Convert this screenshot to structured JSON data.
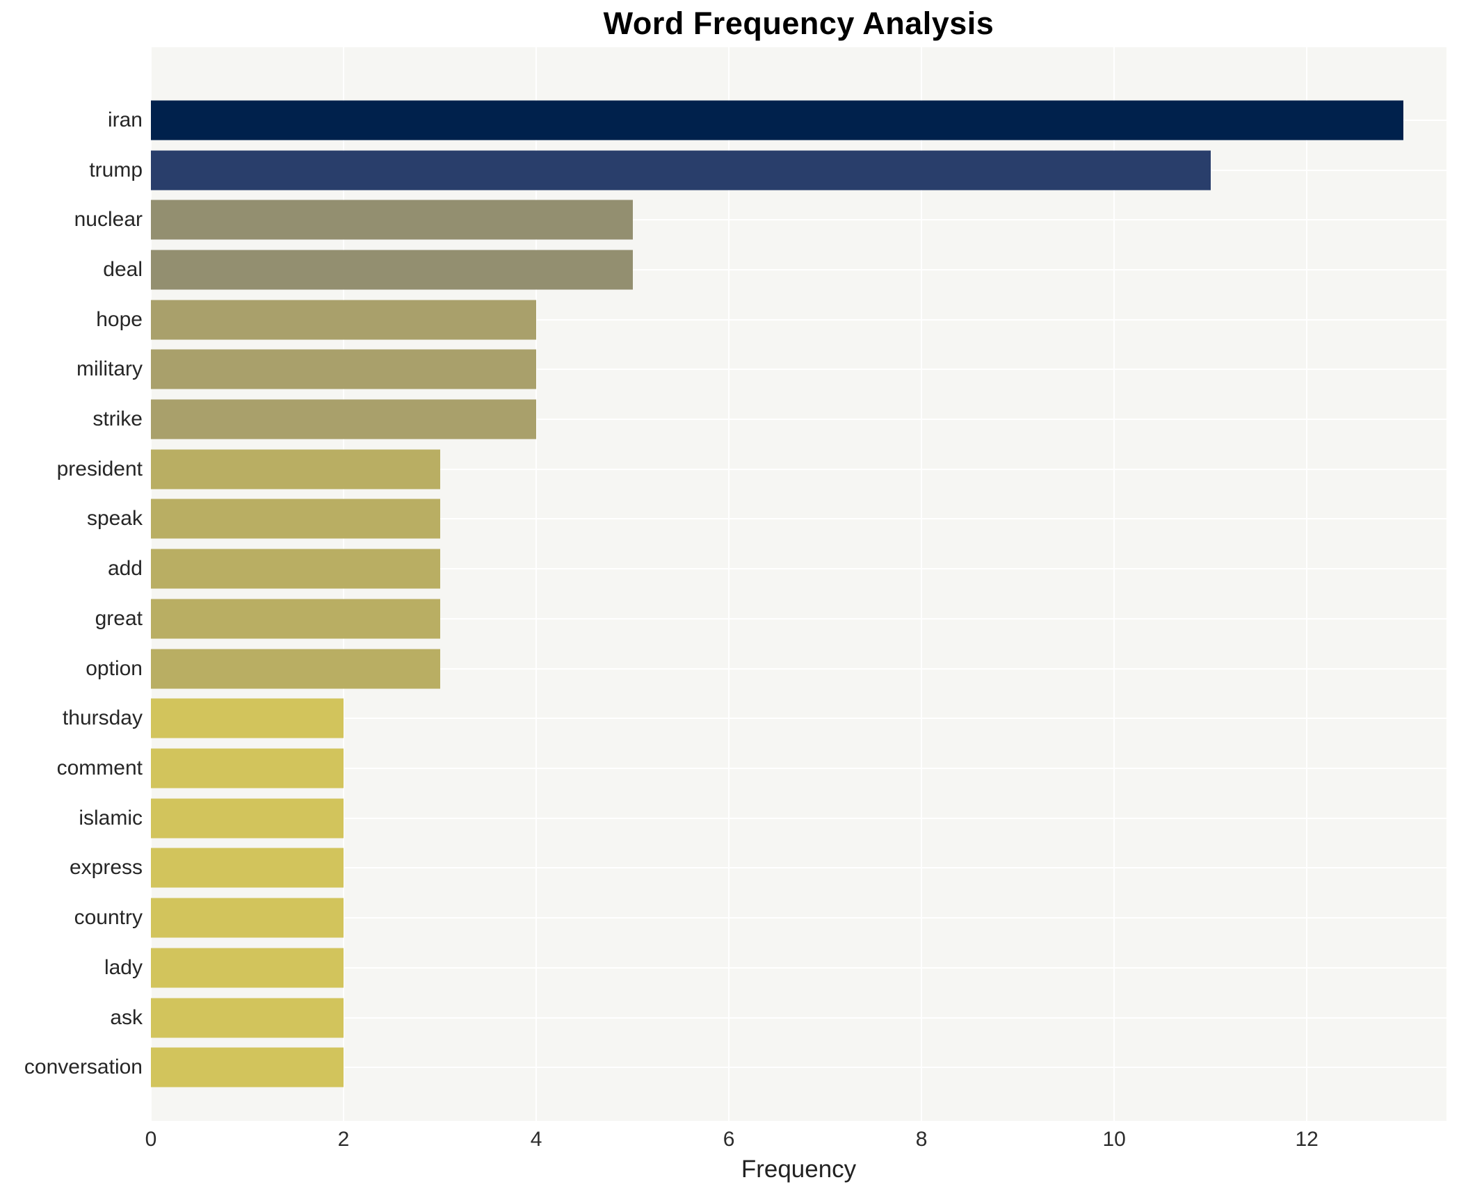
{
  "title": "Word Frequency Analysis",
  "chart_data": {
    "type": "bar",
    "orientation": "horizontal",
    "title": "Word Frequency Analysis",
    "xlabel": "Frequency",
    "ylabel": "",
    "xlim": [
      0,
      13.45
    ],
    "xticks": [
      0,
      2,
      4,
      6,
      8,
      10,
      12
    ],
    "grid": true,
    "legend": false,
    "plot_bg_color": "#f6f6f3",
    "grid_color": "#ffffff",
    "categories": [
      "iran",
      "trump",
      "nuclear",
      "deal",
      "hope",
      "military",
      "strike",
      "president",
      "speak",
      "add",
      "great",
      "option",
      "thursday",
      "comment",
      "islamic",
      "express",
      "country",
      "lady",
      "ask",
      "conversation"
    ],
    "values": [
      13,
      11,
      5,
      5,
      4,
      4,
      4,
      3,
      3,
      3,
      3,
      3,
      2,
      2,
      2,
      2,
      2,
      2,
      2,
      2
    ],
    "bar_colors": [
      "#00214c",
      "#293e6b",
      "#938f70",
      "#938f70",
      "#a9a06b",
      "#a9a06b",
      "#a9a06b",
      "#b9ae63",
      "#b9ae63",
      "#b9ae63",
      "#b9ae63",
      "#b9ae63",
      "#d2c45c",
      "#d2c45c",
      "#d2c45c",
      "#d2c45c",
      "#d2c45c",
      "#d2c45c",
      "#d2c45c",
      "#d2c45c"
    ]
  }
}
